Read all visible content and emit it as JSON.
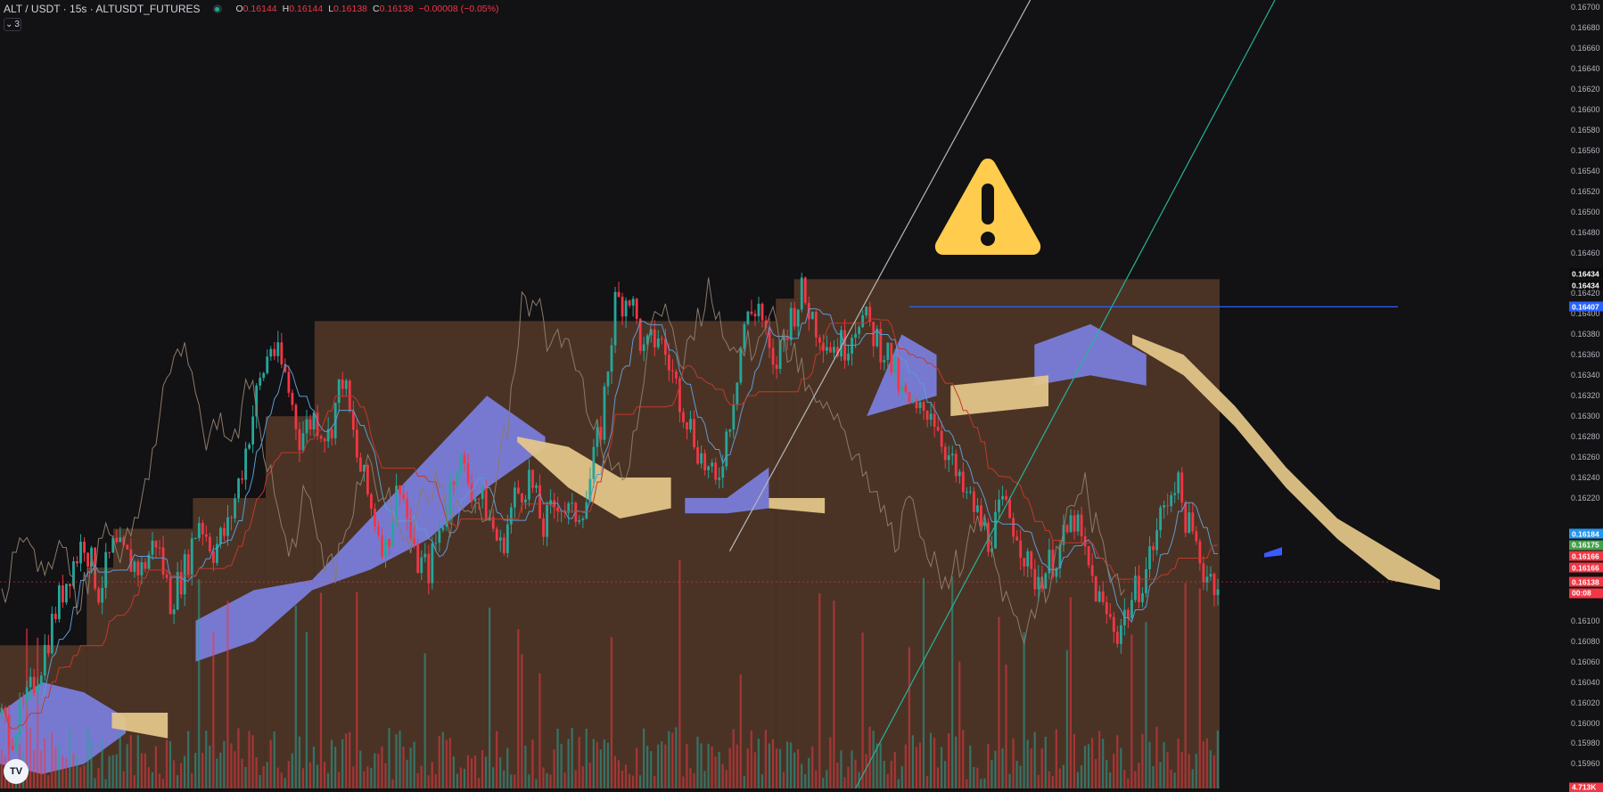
{
  "header": {
    "symbol": "ALT / USDT · 15s · ALTUSDT_FUTURES",
    "ohlc": [
      {
        "k": "O",
        "v": "0.16144"
      },
      {
        "k": "H",
        "v": "0.16144"
      },
      {
        "k": "L",
        "v": "0.16138"
      },
      {
        "k": "C",
        "v": "0.16138"
      },
      {
        "k": "",
        "v": "−0.00008 (−0.05%)"
      }
    ],
    "indicator_count": "3"
  },
  "logo_text": "TV",
  "colors": {
    "background": "#121113",
    "up": "#26a69a",
    "down": "#f23645",
    "cloud_bull": "#7b7fe0",
    "cloud_bear": "#e6c98a",
    "box_fill": "#4a3325",
    "hline": "#2962ff",
    "trend_white": "#b8b8b8",
    "trend_teal": "#26b399"
  },
  "price_axis": {
    "ticks": [
      "0.16700",
      "0.16680",
      "0.16660",
      "0.16640",
      "0.16620",
      "0.16600",
      "0.16580",
      "0.16560",
      "0.16540",
      "0.16520",
      "0.16500",
      "0.16480",
      "0.16460",
      "0.16420",
      "0.16400",
      "0.16380",
      "0.16360",
      "0.16340",
      "0.16320",
      "0.16300",
      "0.16280",
      "0.16260",
      "0.16240",
      "0.16220",
      "0.16100",
      "0.16080",
      "0.16060",
      "0.16040",
      "0.16020",
      "0.16000",
      "0.15980",
      "0.15960"
    ],
    "tags": [
      {
        "label": "0.16434",
        "price": 0.164395,
        "color": "#0b0b0c"
      },
      {
        "label": "0.16434",
        "price": 0.16428,
        "color": "#0b0b0c"
      },
      {
        "label": "0.16407",
        "price": 0.16407,
        "color": "#2962ff"
      },
      {
        "label": "0.16184",
        "price": 0.16185,
        "color": "#2196f3"
      },
      {
        "label": "0.16175",
        "price": 0.16174,
        "color": "#43a047"
      },
      {
        "label": "0.16166",
        "price": 0.16163,
        "color": "#f23645"
      },
      {
        "label": "0.16166",
        "price": 0.16152,
        "color": "#f23645"
      },
      {
        "label": "0.16138",
        "price": 0.16138,
        "color": "#f23645"
      },
      {
        "label": "00:08",
        "price": 0.16127,
        "color": "#f23645"
      },
      {
        "label": "4.713K",
        "price": 0.15937,
        "color": "#f23645"
      }
    ]
  },
  "chart_data": {
    "type": "candlestick",
    "symbol": "ALT / USDT",
    "interval": "15s",
    "ylim": [
      0.15936,
      0.16707
    ],
    "last_price": 0.16138,
    "horizontal_line": 0.16407,
    "price_path": [
      0.16009,
      0.1599,
      0.1602,
      0.1606,
      0.1611,
      0.1615,
      0.1618,
      0.1613,
      0.1617,
      0.1616,
      0.1615,
      0.1618,
      0.1612,
      0.1615,
      0.162,
      0.1617,
      0.1619,
      0.1625,
      0.1632,
      0.1637,
      0.1634,
      0.1628,
      0.163,
      0.1628,
      0.1634,
      0.1626,
      0.1621,
      0.1617,
      0.1624,
      0.1616,
      0.1615,
      0.162,
      0.1626,
      0.1623,
      0.1621,
      0.1617,
      0.1622,
      0.1624,
      0.1619,
      0.1622,
      0.162,
      0.1622,
      0.1629,
      0.1641,
      0.1642,
      0.1636,
      0.1638,
      0.1634,
      0.163,
      0.1626,
      0.1623,
      0.163,
      0.1639,
      0.1641,
      0.1634,
      0.1639,
      0.1642,
      0.1639,
      0.1637,
      0.1637,
      0.164,
      0.1638,
      0.1636,
      0.1632,
      0.163,
      0.1631,
      0.1627,
      0.1623,
      0.1621,
      0.1618,
      0.1621,
      0.1619,
      0.1614,
      0.1615,
      0.1617,
      0.162,
      0.1615,
      0.1611,
      0.1609,
      0.1612,
      0.1615,
      0.162,
      0.1624,
      0.1619,
      0.1615,
      0.16138
    ],
    "boxes": [
      {
        "from": 0,
        "to": 0.062,
        "top": 0.16076
      },
      {
        "from": 0.062,
        "to": 0.081,
        "top": 0.16152
      },
      {
        "from": 0.081,
        "to": 0.138,
        "top": 0.1619
      },
      {
        "from": 0.138,
        "to": 0.19,
        "top": 0.1622
      },
      {
        "from": 0.19,
        "to": 0.225,
        "top": 0.163
      },
      {
        "from": 0.225,
        "to": 0.555,
        "top": 0.16393
      },
      {
        "from": 0.555,
        "to": 0.568,
        "top": 0.16415
      },
      {
        "from": 0.568,
        "to": 1,
        "top": 0.16434
      }
    ],
    "kumo_bull": [
      {
        "from": 0.0,
        "to": 0.09,
        "top": [
          0.1601,
          0.1604,
          0.1603,
          0.16005
        ],
        "bottom": [
          0.1596,
          0.1595,
          0.1596,
          0.1599
        ]
      },
      {
        "from": 0.14,
        "to": 0.39,
        "top": [
          0.161,
          0.1613,
          0.1614,
          0.162,
          0.1626,
          0.1632,
          0.1628
        ],
        "bottom": [
          0.1606,
          0.1608,
          0.1613,
          0.1615,
          0.1618,
          0.1623,
          0.1627
        ]
      },
      {
        "from": 0.49,
        "to": 0.55,
        "top": [
          0.1622,
          0.1622,
          0.1625
        ],
        "bottom": [
          0.16205,
          0.16205,
          0.1621
        ]
      },
      {
        "from": 0.62,
        "to": 0.67,
        "top": [
          0.163,
          0.1638,
          0.1636
        ],
        "bottom": [
          0.163,
          0.1631,
          0.1632
        ]
      },
      {
        "from": 0.74,
        "to": 0.82,
        "top": [
          0.1637,
          0.1639,
          0.1636
        ],
        "bottom": [
          0.1633,
          0.1634,
          0.1633
        ]
      }
    ],
    "kumo_bear": [
      {
        "from": 0.08,
        "to": 0.12,
        "top": [
          0.1601,
          0.1601
        ],
        "bottom": [
          0.15995,
          0.15985
        ]
      },
      {
        "from": 0.37,
        "to": 0.48,
        "top": [
          0.1628,
          0.1627,
          0.1624,
          0.1624
        ],
        "bottom": [
          0.16275,
          0.1623,
          0.162,
          0.1621
        ]
      },
      {
        "from": 0.55,
        "to": 0.59,
        "top": [
          0.1622,
          0.1622
        ],
        "bottom": [
          0.1621,
          0.16205
        ]
      },
      {
        "from": 0.68,
        "to": 0.75,
        "top": [
          0.1633,
          0.1634
        ],
        "bottom": [
          0.163,
          0.1631
        ]
      },
      {
        "from": 0.81,
        "to": 1.03,
        "top": [
          0.1638,
          0.1636,
          0.1631,
          0.1625,
          0.162,
          0.1617,
          0.1614
        ],
        "bottom": [
          0.1637,
          0.1634,
          0.1629,
          0.1623,
          0.1618,
          0.1614,
          0.1613
        ]
      }
    ],
    "trend_lines": [
      {
        "color": "white",
        "p1": {
          "x": 0.522,
          "price": 0.16168
        },
        "p2": {
          "x": 0.737,
          "price": 0.16707
        }
      },
      {
        "color": "teal",
        "p1": {
          "x": 0.612,
          "price": 0.15936
        },
        "p2": {
          "x": 0.912,
          "price": 0.16707
        }
      }
    ]
  }
}
